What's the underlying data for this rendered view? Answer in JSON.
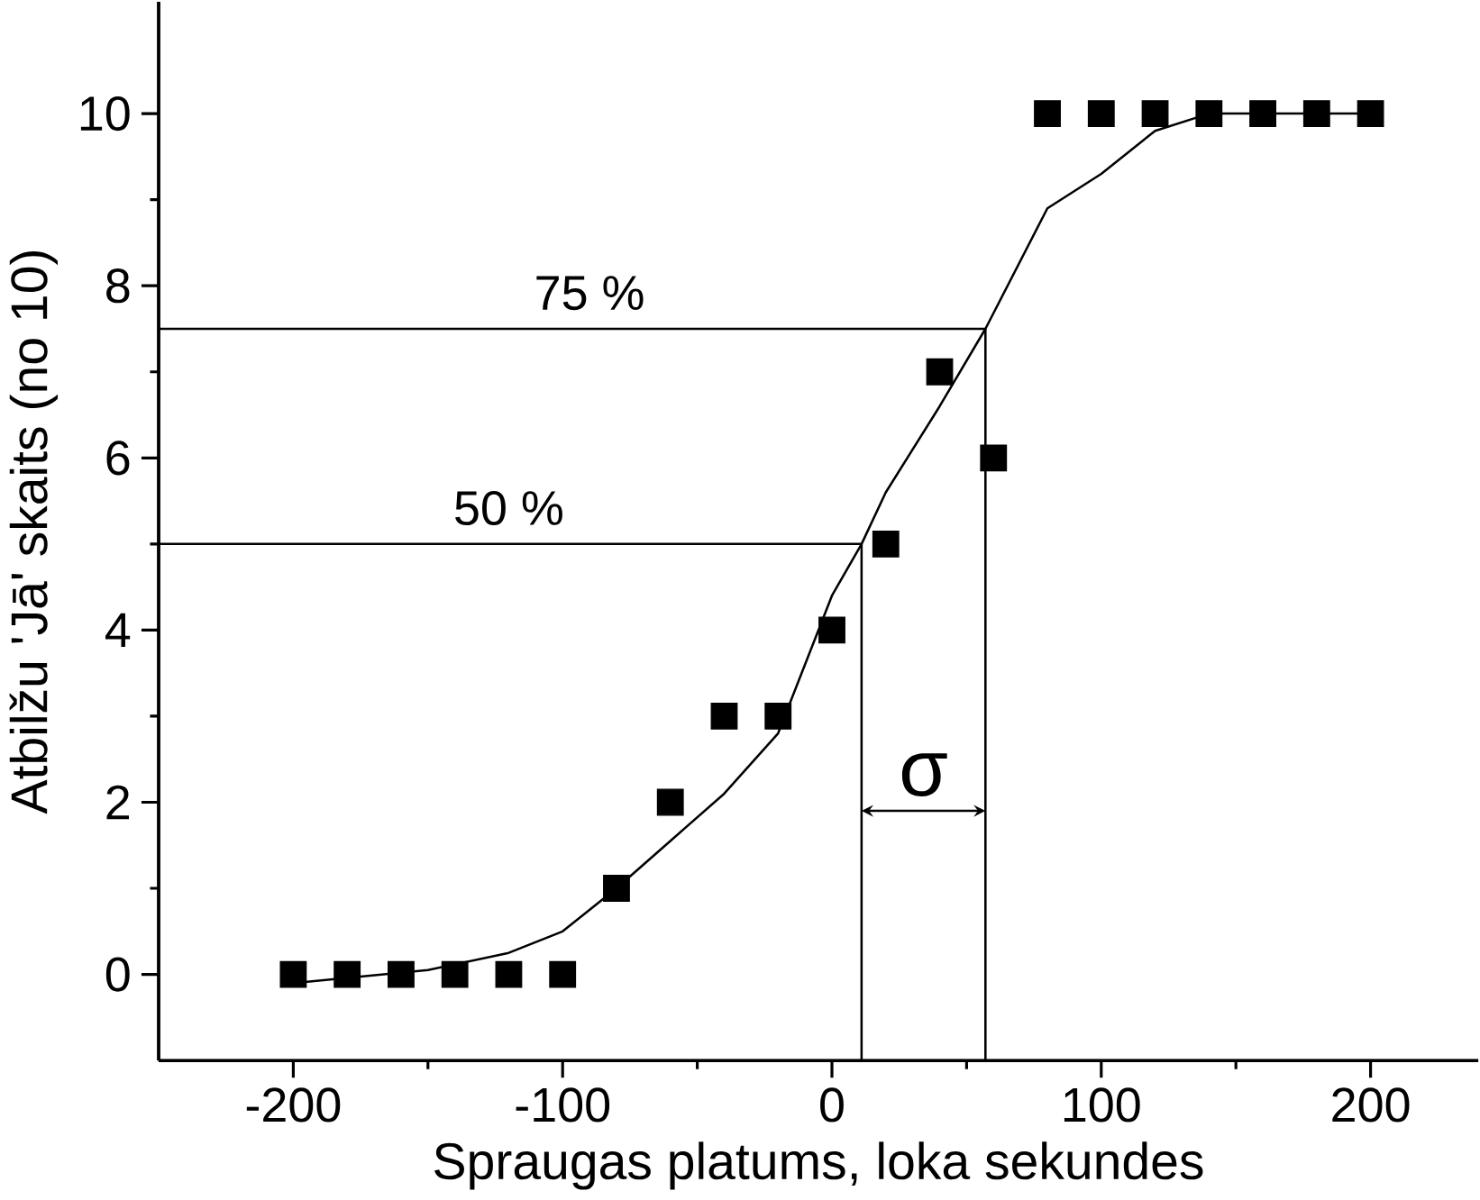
{
  "chart_data": {
    "type": "scatter",
    "xlabel": "Spraugas platums, loka sekundes",
    "ylabel": "Atbilžu 'Jā' skaits (no 10)",
    "xlim": [
      -250,
      240
    ],
    "ylim": [
      -1,
      11.3
    ],
    "xticks": [
      -200,
      -100,
      0,
      100,
      200
    ],
    "yticks": [
      0,
      2,
      4,
      6,
      8,
      10
    ],
    "marker": "square",
    "grid": false,
    "series": [
      {
        "type": "line",
        "marker": "none",
        "color": "#000000",
        "x": [
          -200,
          -150,
          -120,
          -100,
          -80,
          -60,
          -40,
          -20,
          0,
          11,
          20,
          40,
          57,
          80,
          100,
          120,
          140,
          160,
          200
        ],
        "values": [
          -0.1,
          0.05,
          0.25,
          0.5,
          1.0,
          1.55,
          2.1,
          2.8,
          4.4,
          5,
          5.6,
          6.6,
          7.5,
          8.9,
          9.3,
          9.8,
          10,
          10,
          10
        ]
      },
      {
        "type": "line",
        "marker": "none",
        "color": "#000000",
        "x": [
          -250,
          57,
          57
        ],
        "values": [
          7.5,
          7.5,
          -1
        ]
      },
      {
        "type": "line",
        "marker": "none",
        "color": "#000000",
        "x": [
          -250,
          11,
          11
        ],
        "values": [
          5,
          5,
          -1
        ]
      },
      {
        "color": "#000000",
        "x": [
          -200,
          -180,
          -160,
          -140,
          -120,
          -100,
          -80,
          -60,
          -40,
          -20,
          0,
          20,
          40,
          60,
          80,
          100,
          120,
          140,
          160,
          180,
          200
        ],
        "values": [
          0,
          0,
          0,
          0,
          0,
          0,
          1,
          2,
          3,
          3,
          4,
          5,
          7,
          6,
          10,
          10,
          10,
          10,
          10,
          10,
          10
        ]
      }
    ],
    "annotations": [
      "75 %",
      "50 %",
      "σ"
    ]
  }
}
